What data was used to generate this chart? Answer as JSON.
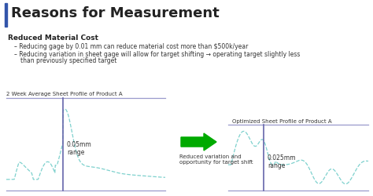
{
  "title": "Reasons for Measurement",
  "title_fontsize": 13,
  "background_color": "#ffffff",
  "subtitle": "Reduced Material Cost",
  "bullet1": "Reducing gage by 0.01 mm can reduce material cost more than $500k/year",
  "bullet2": "Reducing variation in sheet gage will allow for target shifting → operating target slightly less\nthan previously specified target",
  "left_chart_title": "2 Week Average Sheet Profile of Product A",
  "right_chart_title": "Optimized Sheet Profile of Product A",
  "left_range_label": "0.05mm\nrange",
  "right_range_label": "0.025mm\nrange",
  "arrow_label": "Reduced variation and\nopportunity for target shift",
  "line_color": "#70ccc8",
  "vline_color": "#6666aa",
  "hline_color": "#9999cc",
  "arrow_color": "#00aa00",
  "accent_bar_color": "#3355aa",
  "text_color": "#222222",
  "bullet_color": "#333333"
}
